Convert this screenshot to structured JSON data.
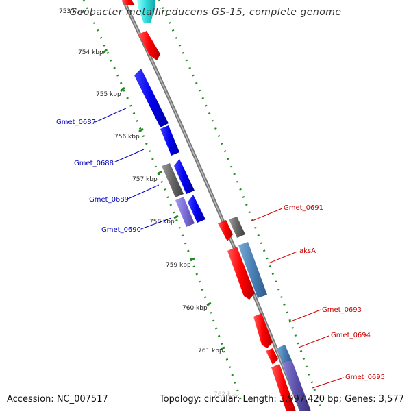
{
  "title": "Geobacter metallireducens GS-15, complete genome",
  "footer": {
    "accession": "Accession: NC_007517",
    "summary": "Topology: circular; Length: 3,997,420 bp; Genes: 3,577"
  },
  "ticks": [
    {
      "label": "753 kbp"
    },
    {
      "label": "754 kbp"
    },
    {
      "label": "755 kbp"
    },
    {
      "label": "756 kbp"
    },
    {
      "label": "757 kbp"
    },
    {
      "label": "758 kbp"
    },
    {
      "label": "759 kbp"
    },
    {
      "label": "760 kbp"
    },
    {
      "label": "761 kbp"
    },
    {
      "label": "762 kbp"
    }
  ],
  "gene_labels_left": [
    {
      "text": "Gmet_0687",
      "color": "#0000bb"
    },
    {
      "text": "Gmet_0688",
      "color": "#0000bb"
    },
    {
      "text": "Gmet_0689",
      "color": "#0000bb"
    },
    {
      "text": "Gmet_0690",
      "color": "#0000bb"
    }
  ],
  "gene_labels_right": [
    {
      "text": "Gmet_0691",
      "color": "#cc0000"
    },
    {
      "text": "aksA",
      "color": "#cc0000"
    },
    {
      "text": "Gmet_0693",
      "color": "#cc0000"
    },
    {
      "text": "Gmet_0694",
      "color": "#cc0000"
    },
    {
      "text": "Gmet_0695",
      "color": "#cc0000"
    }
  ],
  "colors": {
    "forward_gene": "#ff0000",
    "reverse_gene": "#0000ee",
    "gray_gene": "#666666",
    "steelblue_gene": "#4a7fb5",
    "slate_gene": "#5a4fa8",
    "cyan_gene": "#33dddd",
    "backbone": "#888888",
    "tick_green": "#228b22"
  }
}
